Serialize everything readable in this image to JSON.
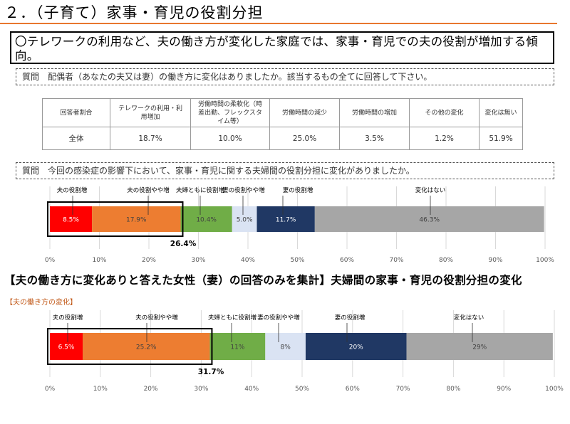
{
  "heading": "２．（子育て）家事・育児の役割分担",
  "lead": "〇テレワークの利用など、夫の働き方が変化した家庭では、家事・育児での夫の役割が増加する傾向。",
  "question1": "質問　配偶者（あなたの夫又は妻）の働き方に変化はありましたか。該当するもの全てに回答して下さい。",
  "table": {
    "headers": [
      "回答者割合",
      "テレワークの利用・利用増加",
      "労働時間の柔軟化（時差出勤、フレックスタイム等）",
      "労働時間の減少",
      "労働時間の増加",
      "その他の変化",
      "変化は無い"
    ],
    "row": [
      "全体",
      "18.7%",
      "10.0%",
      "25.0%",
      "3.5%",
      "1.2%",
      "51.9%"
    ]
  },
  "question2": "質問　今回の感染症の影響下において、家事・育児に関する夫婦間の役割分担に変化がありましたか。",
  "section_title": "【夫の働き方に変化ありと答えた女性（妻）の回答のみを集計】夫婦間の家事・育児の役割分担の変化",
  "subnote": "【夫の働き方の変化】",
  "colors": {
    "accent_rule": "#e8772e",
    "segments": [
      "#ff0000",
      "#ed7d31",
      "#70ad47",
      "#dae3f3",
      "#203864",
      "#a6a6a6"
    ]
  },
  "chart_data": [
    {
      "type": "bar",
      "orientation": "horizontal-stacked-100",
      "categories": [
        "夫の役割増",
        "夫の役割やや増",
        "夫婦ともに役割増",
        "妻の役割やや増",
        "妻の役割増",
        "変化はない"
      ],
      "values": [
        8.5,
        17.9,
        10.4,
        5.0,
        11.7,
        46.3
      ],
      "data_labels": [
        "8.5%",
        "17.9%",
        "10.4%",
        "5.0%",
        "11.7%",
        "46.3%"
      ],
      "highlight_label": "26.4%",
      "xlim": [
        0,
        100
      ],
      "x_ticks": [
        "0%",
        "10%",
        "20%",
        "30%",
        "40%",
        "50%",
        "60%",
        "70%",
        "80%",
        "90%",
        "100%"
      ]
    },
    {
      "type": "bar",
      "orientation": "horizontal-stacked-100",
      "categories": [
        "夫の役割増",
        "夫の役割やや増",
        "夫婦ともに役割増",
        "妻の役割やや増",
        "妻の役割増",
        "変化はない"
      ],
      "values": [
        6.5,
        25.2,
        11,
        8,
        20,
        29
      ],
      "data_labels": [
        "6.5%",
        "25.2%",
        "11%",
        "8%",
        "20%",
        "29%"
      ],
      "highlight_label": "31.7%",
      "xlim": [
        0,
        100
      ],
      "x_ticks": [
        "0%",
        "10%",
        "20%",
        "30%",
        "40%",
        "50%",
        "60%",
        "70%",
        "80%",
        "90%",
        "100%"
      ]
    }
  ]
}
